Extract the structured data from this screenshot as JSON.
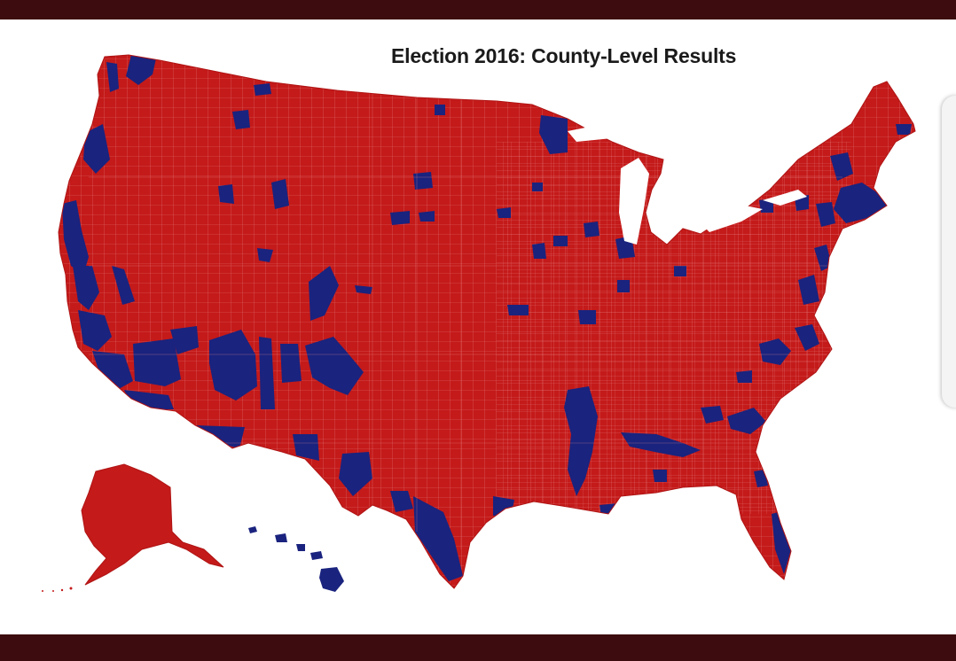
{
  "map": {
    "title": "Election 2016: County-Level Results"
  },
  "colors": {
    "frame": "#3d0c0e",
    "republican": "#c41a1a",
    "democrat": "#1a237e",
    "county_border": "#e98a8a",
    "background": "#ffffff"
  },
  "icons": {
    "side_handle": "drawer-handle-icon"
  }
}
